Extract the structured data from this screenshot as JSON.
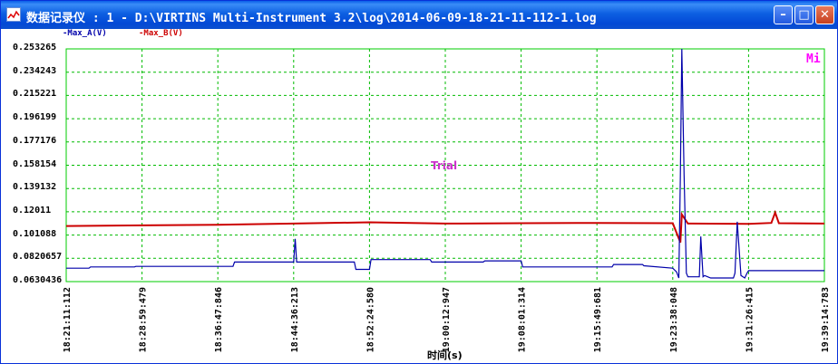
{
  "window": {
    "title": "数据记录仪 : 1 - D:\\VIRTINS Multi-Instrument 3.2\\log\\2014-06-09-18-21-11-112-1.log",
    "minimize_glyph": "–",
    "maximize_glyph": "□",
    "close_glyph": "✕",
    "app_icon": "chart-window-icon"
  },
  "legend": [
    {
      "label": "-Max_A(V)",
      "color": "#0000aa"
    },
    {
      "label": "-Max_B(V)",
      "color": "#cc0000"
    }
  ],
  "corner_label": "Mi",
  "watermark": "Trial",
  "chart_data": {
    "type": "line",
    "xlabel": "时间(s)",
    "ylim": [
      0.0630436,
      0.253265
    ],
    "y_ticks": [
      "0.253265",
      "0.234243",
      "0.215221",
      "0.196199",
      "0.177176",
      "0.158154",
      "0.139132",
      "0.12011",
      "0.101088",
      "0.0820657",
      "0.0630436"
    ],
    "x_ticks": [
      "18:21:11:112",
      "18:28:59:479",
      "18:36:47:846",
      "18:44:36:213",
      "18:52:24:580",
      "19:00:12:947",
      "19:08:01:314",
      "19:15:49:681",
      "19:23:38:048",
      "19:31:26:415",
      "19:39:14:783"
    ],
    "grid": true,
    "series": [
      {
        "name": "Max_A(V)",
        "color": "#0000aa",
        "x_frac": [
          0,
          0.03,
          0.032,
          0.09,
          0.092,
          0.22,
          0.222,
          0.3,
          0.302,
          0.304,
          0.38,
          0.382,
          0.4,
          0.402,
          0.48,
          0.482,
          0.55,
          0.552,
          0.6,
          0.602,
          0.72,
          0.722,
          0.76,
          0.762,
          0.8,
          0.805,
          0.808,
          0.81,
          0.812,
          0.815,
          0.818,
          0.82,
          0.835,
          0.837,
          0.84,
          0.842,
          0.85,
          0.88,
          0.882,
          0.885,
          0.89,
          0.895,
          0.898,
          0.9,
          0.91,
          0.93,
          1.0
        ],
        "values": [
          0.074,
          0.074,
          0.075,
          0.075,
          0.0755,
          0.0755,
          0.079,
          0.079,
          0.098,
          0.079,
          0.079,
          0.073,
          0.073,
          0.081,
          0.081,
          0.079,
          0.079,
          0.08,
          0.08,
          0.075,
          0.075,
          0.077,
          0.077,
          0.076,
          0.074,
          0.071,
          0.066,
          0.15,
          0.2533,
          0.15,
          0.07,
          0.067,
          0.067,
          0.1,
          0.067,
          0.068,
          0.066,
          0.066,
          0.07,
          0.112,
          0.068,
          0.066,
          0.07,
          0.072,
          0.072,
          0.072,
          0.072
        ]
      },
      {
        "name": "Max_B(V)",
        "color": "#cc0000",
        "x_frac": [
          0,
          0.1,
          0.2,
          0.3,
          0.4,
          0.5,
          0.6,
          0.7,
          0.8,
          0.81,
          0.812,
          0.82,
          0.9,
          0.93,
          0.935,
          0.94,
          1.0
        ],
        "values": [
          0.1085,
          0.109,
          0.1095,
          0.1105,
          0.1115,
          0.1105,
          0.1108,
          0.111,
          0.1108,
          0.095,
          0.118,
          0.1105,
          0.1102,
          0.111,
          0.1195,
          0.1108,
          0.1105
        ]
      }
    ]
  }
}
